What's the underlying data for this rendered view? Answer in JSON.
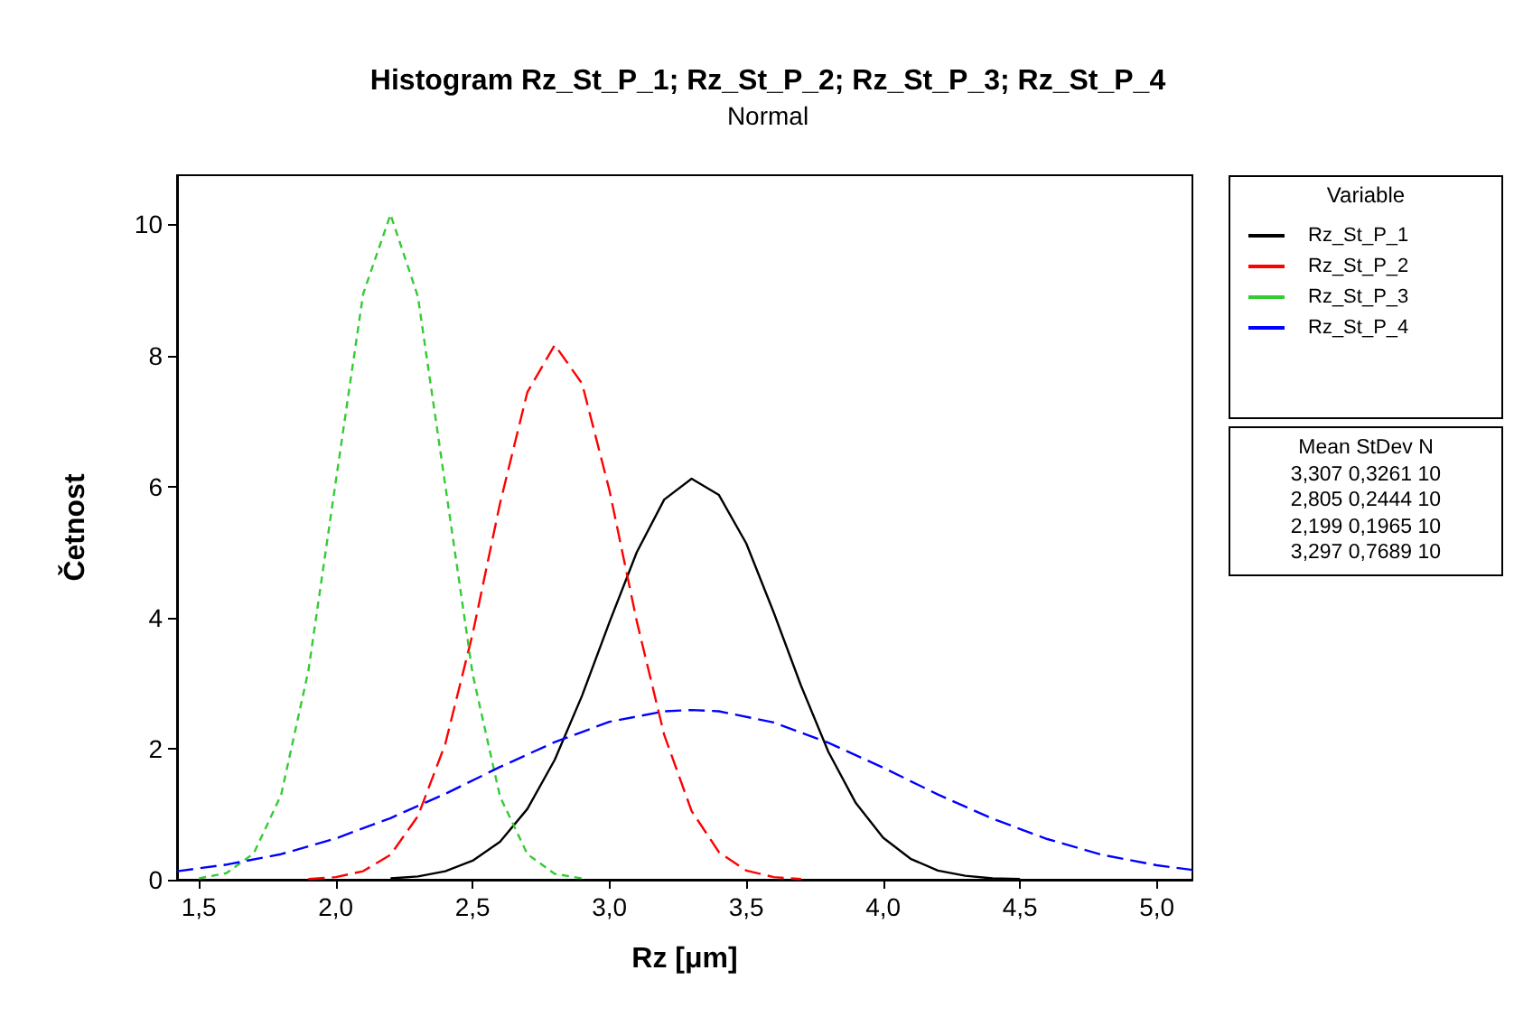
{
  "chart_data": {
    "type": "line",
    "title": "Histogram Rz_St_P_1; Rz_St_P_2; Rz_St_P_3; Rz_St_P_4",
    "subtitle": "Normal",
    "xlabel": "Rz [μm]",
    "ylabel": "Četnost",
    "legend_title": "Variable",
    "legend": "right",
    "grid": false,
    "marker": "none",
    "xlim": [
      1.42,
      5.13
    ],
    "ylim": [
      0,
      10.75
    ],
    "xticks": [
      {
        "value": 1.5,
        "label": "1,5"
      },
      {
        "value": 2.0,
        "label": "2,0"
      },
      {
        "value": 2.5,
        "label": "2,5"
      },
      {
        "value": 3.0,
        "label": "3,0"
      },
      {
        "value": 3.5,
        "label": "3,5"
      },
      {
        "value": 4.0,
        "label": "4,0"
      },
      {
        "value": 4.5,
        "label": "4,5"
      },
      {
        "value": 5.0,
        "label": "5,0"
      }
    ],
    "yticks": [
      0,
      2,
      4,
      6,
      8,
      10
    ],
    "annotations": [
      "Mean StDev N",
      "3,307 0,3261 10",
      "2,805 0,2444 10",
      "2,199 0,1965 10",
      "3,297 0,7689 10"
    ],
    "series": [
      {
        "name": "Rz_St_P_1",
        "color": "#000000",
        "line_style": "solid",
        "x": [
          2.2,
          2.3,
          2.4,
          2.5,
          2.6,
          2.7,
          2.8,
          2.9,
          3.0,
          3.1,
          3.2,
          3.3,
          3.4,
          3.5,
          3.6,
          3.7,
          3.8,
          3.9,
          4.0,
          4.1,
          4.2,
          4.3,
          4.4,
          4.5
        ],
        "values": [
          0.02,
          0.05,
          0.13,
          0.29,
          0.58,
          1.08,
          1.83,
          2.81,
          3.93,
          5.0,
          5.8,
          6.12,
          5.87,
          5.13,
          4.08,
          2.96,
          1.95,
          1.17,
          0.64,
          0.32,
          0.14,
          0.06,
          0.02,
          0.01
        ]
      },
      {
        "name": "Rz_St_P_2",
        "color": "#ff0000",
        "line_style": "dashed",
        "x": [
          1.9,
          2.0,
          2.1,
          2.2,
          2.3,
          2.4,
          2.5,
          2.6,
          2.7,
          2.8,
          2.9,
          3.0,
          3.1,
          3.2,
          3.3,
          3.4,
          3.5,
          3.6,
          3.7
        ],
        "values": [
          0.01,
          0.04,
          0.13,
          0.38,
          0.97,
          2.07,
          3.75,
          5.74,
          7.44,
          8.16,
          7.57,
          5.94,
          3.94,
          2.21,
          1.05,
          0.42,
          0.14,
          0.04,
          0.01
        ]
      },
      {
        "name": "Rz_St_P_3",
        "color": "#33cc33",
        "line_style": "dotted",
        "x": [
          1.5,
          1.6,
          1.7,
          1.8,
          1.9,
          2.0,
          2.1,
          2.2,
          2.3,
          2.4,
          2.5,
          2.6,
          2.7,
          2.8,
          2.9
        ],
        "values": [
          0.02,
          0.1,
          0.4,
          1.29,
          3.19,
          6.08,
          8.94,
          10.15,
          8.9,
          6.02,
          3.14,
          1.27,
          0.39,
          0.09,
          0.02
        ]
      },
      {
        "name": "Rz_St_P_4",
        "color": "#0000ff",
        "line_style": "dashed",
        "x": [
          1.42,
          1.6,
          1.8,
          2.0,
          2.2,
          2.4,
          2.6,
          2.8,
          3.0,
          3.2,
          3.3,
          3.4,
          3.6,
          3.8,
          4.0,
          4.2,
          4.4,
          4.6,
          4.8,
          5.0,
          5.13
        ],
        "values": [
          0.13,
          0.23,
          0.39,
          0.63,
          0.94,
          1.31,
          1.72,
          2.1,
          2.41,
          2.57,
          2.59,
          2.57,
          2.4,
          2.09,
          1.71,
          1.3,
          0.93,
          0.62,
          0.38,
          0.22,
          0.15
        ]
      }
    ]
  }
}
